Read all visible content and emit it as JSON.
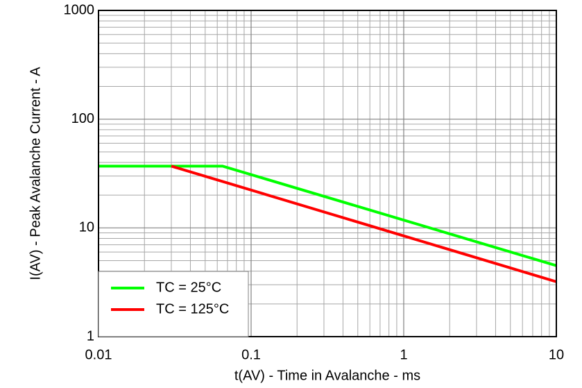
{
  "chart_data": {
    "type": "line",
    "x_label": "t(AV) - Time in Avalanche - ms",
    "y_label": "I(AV) - Peak Avalanche Current - A",
    "xlog": true,
    "ylog": true,
    "grid": true,
    "minor_grid": true,
    "legend": "lower left",
    "xlim": [
      0.01,
      10
    ],
    "xticks": [
      0.01,
      0.1,
      1,
      10
    ],
    "ylim": [
      1,
      1000
    ],
    "yticks": [
      1,
      10,
      100,
      1000
    ],
    "series": [
      {
        "name": "TC = 25°C",
        "color": "#00ff00",
        "x": [
          0.01,
          0.065,
          10
        ],
        "values": [
          37,
          37,
          4.5
        ]
      },
      {
        "name": "TC = 125°C",
        "color": "#ff0000",
        "x": [
          0.03,
          10
        ],
        "values": [
          37,
          3.2
        ]
      }
    ]
  }
}
